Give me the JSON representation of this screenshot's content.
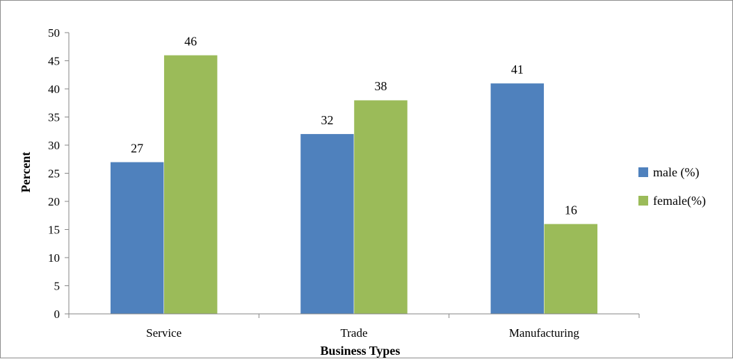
{
  "chart_data": {
    "type": "bar",
    "title": "",
    "xlabel": "Business Types",
    "ylabel": "Percent",
    "categories": [
      "Service",
      "Trade",
      "Manufacturing"
    ],
    "series": [
      {
        "name": "male (%)",
        "values": [
          27,
          32,
          41
        ],
        "labels": [
          "27",
          "32",
          "41"
        ],
        "color": "#4f81bd"
      },
      {
        "name": "female(%)",
        "values": [
          46,
          38,
          16
        ],
        "labels": [
          "46",
          "38",
          "16"
        ],
        "color": "#9bbb59"
      }
    ],
    "ylim": [
      0,
      50
    ],
    "yticks": [
      0,
      5,
      10,
      15,
      20,
      25,
      30,
      35,
      40,
      45,
      50
    ],
    "grid": false,
    "legend_position": "right"
  }
}
